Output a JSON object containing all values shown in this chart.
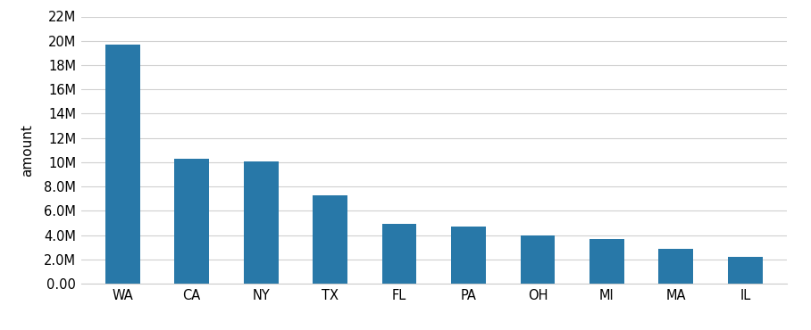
{
  "categories": [
    "WA",
    "CA",
    "NY",
    "TX",
    "FL",
    "PA",
    "OH",
    "MI",
    "MA",
    "IL"
  ],
  "values": [
    19700000,
    10300000,
    10050000,
    7250000,
    4950000,
    4700000,
    3950000,
    3700000,
    2900000,
    2250000
  ],
  "bar_color": "#2878a8",
  "ylabel": "amount",
  "ylim": [
    0,
    22000000
  ],
  "yticks": [
    0,
    2000000,
    4000000,
    6000000,
    8000000,
    10000000,
    12000000,
    14000000,
    16000000,
    18000000,
    20000000,
    22000000
  ],
  "ytick_labels": [
    "0.00",
    "2.0M",
    "4.0M",
    "6.0M",
    "8.0M",
    "10M",
    "12M",
    "14M",
    "16M",
    "18M",
    "20M",
    "22M"
  ],
  "background_color": "#ffffff",
  "grid_color": "#d0d0d0",
  "bar_width": 0.5,
  "figsize": [
    9.08,
    3.7
  ],
  "dpi": 100
}
